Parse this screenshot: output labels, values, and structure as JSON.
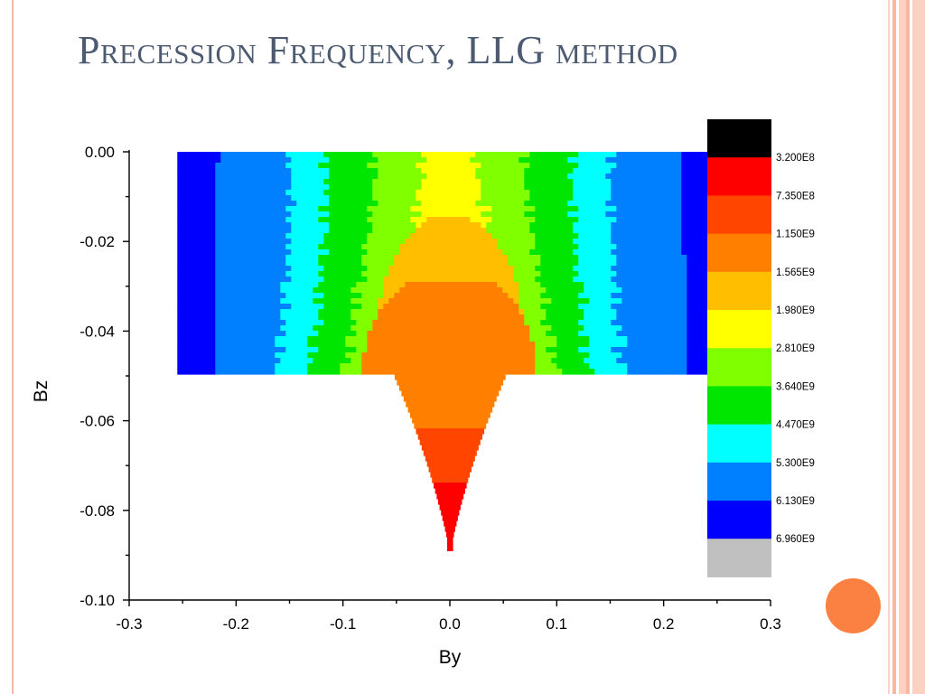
{
  "slide": {
    "title": "Precession Frequency, LLG method",
    "colors": {
      "title": "#4d5b72",
      "frame_light": "#fbd2c2",
      "frame_dark": "#f6b8a2",
      "circle": "#fb8143"
    }
  },
  "chart_data": {
    "type": "heatmap",
    "title": "",
    "xlabel": "By",
    "ylabel": "Bz",
    "xlim": [
      -0.3,
      0.3
    ],
    "ylim": [
      -0.1,
      0.0
    ],
    "x_ticks": [
      "-0.3",
      "-0.2",
      "-0.1",
      "0.0",
      "0.1",
      "0.2",
      "0.3"
    ],
    "y_ticks": [
      "0.00",
      "-0.02",
      "-0.04",
      "-0.06",
      "-0.08",
      "-0.10"
    ],
    "data_extent": {
      "by": [
        -0.255,
        0.255
      ],
      "bz_rectangle": [
        -0.05,
        0.0
      ],
      "bz_min_at_by0": -0.089
    },
    "colorbar": {
      "levels": [
        "3.200E8",
        "7.350E8",
        "1.150E9",
        "1.565E9",
        "1.980E9",
        "2.810E9",
        "3.640E9",
        "4.470E9",
        "5.300E9",
        "6.130E9",
        "6.960E9"
      ],
      "colors": [
        "#000000",
        "#ff0000",
        "#ff4500",
        "#ff8000",
        "#ffbf00",
        "#ffff00",
        "#80ff00",
        "#00e600",
        "#00ffff",
        "#0080ff",
        "#0000ff",
        "#c0c0c0"
      ]
    }
  }
}
